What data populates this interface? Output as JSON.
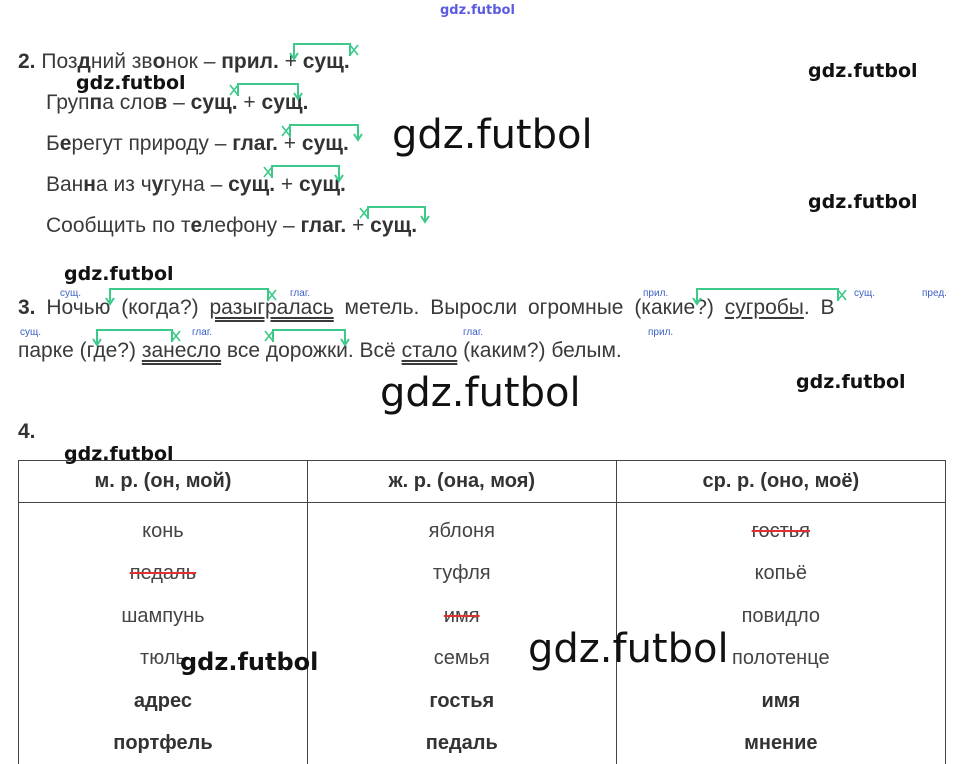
{
  "watermarks": {
    "top": "gdz.futbol",
    "text": "gdz.futbol"
  },
  "ex2": {
    "number": "2.",
    "lines": [
      [
        {
          "t": "Поз"
        },
        {
          "t": "д",
          "b": 1
        },
        {
          "t": "ний зв"
        },
        {
          "t": "о",
          "b": 1
        },
        {
          "t": "нок – "
        },
        {
          "t": "прил.",
          "b": 1
        },
        {
          "t": " + "
        },
        {
          "t": "сущ.",
          "b": 1
        }
      ],
      [
        {
          "t": "Груп"
        },
        {
          "t": "п",
          "b": 1
        },
        {
          "t": "а сло"
        },
        {
          "t": "в",
          "b": 1
        },
        {
          "t": " – "
        },
        {
          "t": "сущ.",
          "b": 1
        },
        {
          "t": " + "
        },
        {
          "t": "сущ.",
          "b": 1
        }
      ],
      [
        {
          "t": "Б"
        },
        {
          "t": "е",
          "b": 1
        },
        {
          "t": "регут природу – "
        },
        {
          "t": "глаг.",
          "b": 1
        },
        {
          "t": " + "
        },
        {
          "t": "сущ.",
          "b": 1
        }
      ],
      [
        {
          "t": "Ван"
        },
        {
          "t": "н",
          "b": 1
        },
        {
          "t": "а из ч"
        },
        {
          "t": "у",
          "b": 1
        },
        {
          "t": "гуна – "
        },
        {
          "t": "сущ.",
          "b": 1
        },
        {
          "t": " + "
        },
        {
          "t": "сущ.",
          "b": 1
        }
      ],
      [
        {
          "t": "Сообщить по т"
        },
        {
          "t": "е",
          "b": 1
        },
        {
          "t": "лефону – "
        },
        {
          "t": "глаг.",
          "b": 1
        },
        {
          "t": " + "
        },
        {
          "t": "сущ.",
          "b": 1
        }
      ]
    ]
  },
  "ex3": {
    "number": "3.",
    "lines": [
      [
        {
          "t": "Ночью (когда?) "
        },
        {
          "t": "разыгралась",
          "c": "u2"
        },
        {
          "t": " метель. Выросли огромные (какие?) "
        },
        {
          "t": "сугробы",
          "c": "u1"
        },
        {
          "t": ". В"
        }
      ],
      [
        {
          "t": "парке (где?) "
        },
        {
          "t": "занесло",
          "c": "u2"
        },
        {
          "t": " все дорожки. Всё "
        },
        {
          "t": "стало",
          "c": "u2"
        },
        {
          "t": " (каким?) белым."
        }
      ]
    ],
    "tags": [
      "сущ.",
      "глаг.",
      "прил.",
      "сущ.",
      "пред.",
      "сущ.",
      "глаг.",
      "глаг.",
      "прил."
    ]
  },
  "ex4": {
    "number": "4.",
    "headers": [
      "м. р. (он, мой)",
      "ж. р. (она, моя)",
      "ср. р. (оно, моё)"
    ],
    "rows": [
      [
        {
          "t": "конь"
        },
        {
          "t": "яблоня"
        },
        {
          "t": "гостья",
          "s": 1
        }
      ],
      [
        {
          "t": "педаль",
          "s": 1
        },
        {
          "t": "туфля"
        },
        {
          "t": "копьё"
        }
      ],
      [
        {
          "t": "шампунь"
        },
        {
          "t": "имя",
          "s": 1
        },
        {
          "t": "повидло"
        }
      ],
      [
        {
          "t": "тюль"
        },
        {
          "t": "семья"
        },
        {
          "t": "полотенце"
        }
      ],
      [
        {
          "t": "адрес",
          "b": 1
        },
        {
          "t": "гостья",
          "b": 1
        },
        {
          "t": "имя",
          "b": 1
        }
      ],
      [
        {
          "t": "портфель",
          "b": 1
        },
        {
          "t": "педаль",
          "b": 1
        },
        {
          "t": "мнение",
          "b": 1
        }
      ]
    ]
  },
  "colors": {
    "arrow": "#3cc98a",
    "tag": "#3b5ec4",
    "strike": "#e03030"
  }
}
